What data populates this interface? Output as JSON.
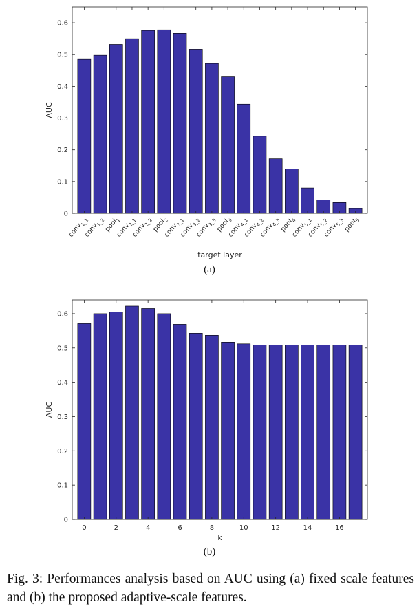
{
  "chart_data": [
    {
      "id": "a",
      "type": "bar",
      "title": "",
      "xlabel": "target layer",
      "ylabel": "AUC",
      "ylim": [
        0,
        0.65
      ],
      "yticks": [
        "0",
        "0.1",
        "0.2",
        "0.3",
        "0.4",
        "0.5",
        "0.6"
      ],
      "categories": [
        {
          "base": "conv",
          "sub": "1_1"
        },
        {
          "base": "conv",
          "sub": "1_2"
        },
        {
          "base": "pool",
          "sub": "1"
        },
        {
          "base": "conv",
          "sub": "2_1"
        },
        {
          "base": "conv",
          "sub": "2_2"
        },
        {
          "base": "pool",
          "sub": "2"
        },
        {
          "base": "conv",
          "sub": "3_1"
        },
        {
          "base": "conv",
          "sub": "3_2"
        },
        {
          "base": "conv",
          "sub": "3_3"
        },
        {
          "base": "pool",
          "sub": "3"
        },
        {
          "base": "conv",
          "sub": "4_1"
        },
        {
          "base": "conv",
          "sub": "4_2"
        },
        {
          "base": "conv",
          "sub": "4_3"
        },
        {
          "base": "pool",
          "sub": "4"
        },
        {
          "base": "conv",
          "sub": "5_1"
        },
        {
          "base": "conv",
          "sub": "5_2"
        },
        {
          "base": "conv",
          "sub": "5_3"
        },
        {
          "base": "pool",
          "sub": "5"
        }
      ],
      "values": [
        0.485,
        0.498,
        0.532,
        0.55,
        0.576,
        0.578,
        0.567,
        0.517,
        0.472,
        0.43,
        0.344,
        0.243,
        0.172,
        0.14,
        0.08,
        0.042,
        0.034,
        0.015
      ],
      "bar_color": "#3a33a6"
    },
    {
      "id": "b",
      "type": "bar",
      "title": "",
      "xlabel": "k",
      "ylabel": "AUC",
      "ylim": [
        0,
        0.64
      ],
      "yticks": [
        "0",
        "0.1",
        "0.2",
        "0.3",
        "0.4",
        "0.5",
        "0.6"
      ],
      "xticks": [
        "0",
        "2",
        "4",
        "6",
        "8",
        "10",
        "12",
        "14",
        "16"
      ],
      "x": [
        0,
        1,
        2,
        3,
        4,
        5,
        6,
        7,
        8,
        9,
        10,
        11,
        12,
        13,
        14,
        15,
        16,
        17
      ],
      "values": [
        0.571,
        0.6,
        0.605,
        0.622,
        0.615,
        0.6,
        0.569,
        0.543,
        0.537,
        0.517,
        0.512,
        0.509,
        0.509,
        0.509,
        0.509,
        0.509,
        0.509,
        0.509
      ],
      "bar_color": "#3a33a6"
    }
  ],
  "labels": {
    "a": "(a)",
    "b": "(b)"
  },
  "caption": "Fig. 3: Performances analysis based on AUC using (a) fixed scale features and (b) the proposed adaptive-scale features."
}
